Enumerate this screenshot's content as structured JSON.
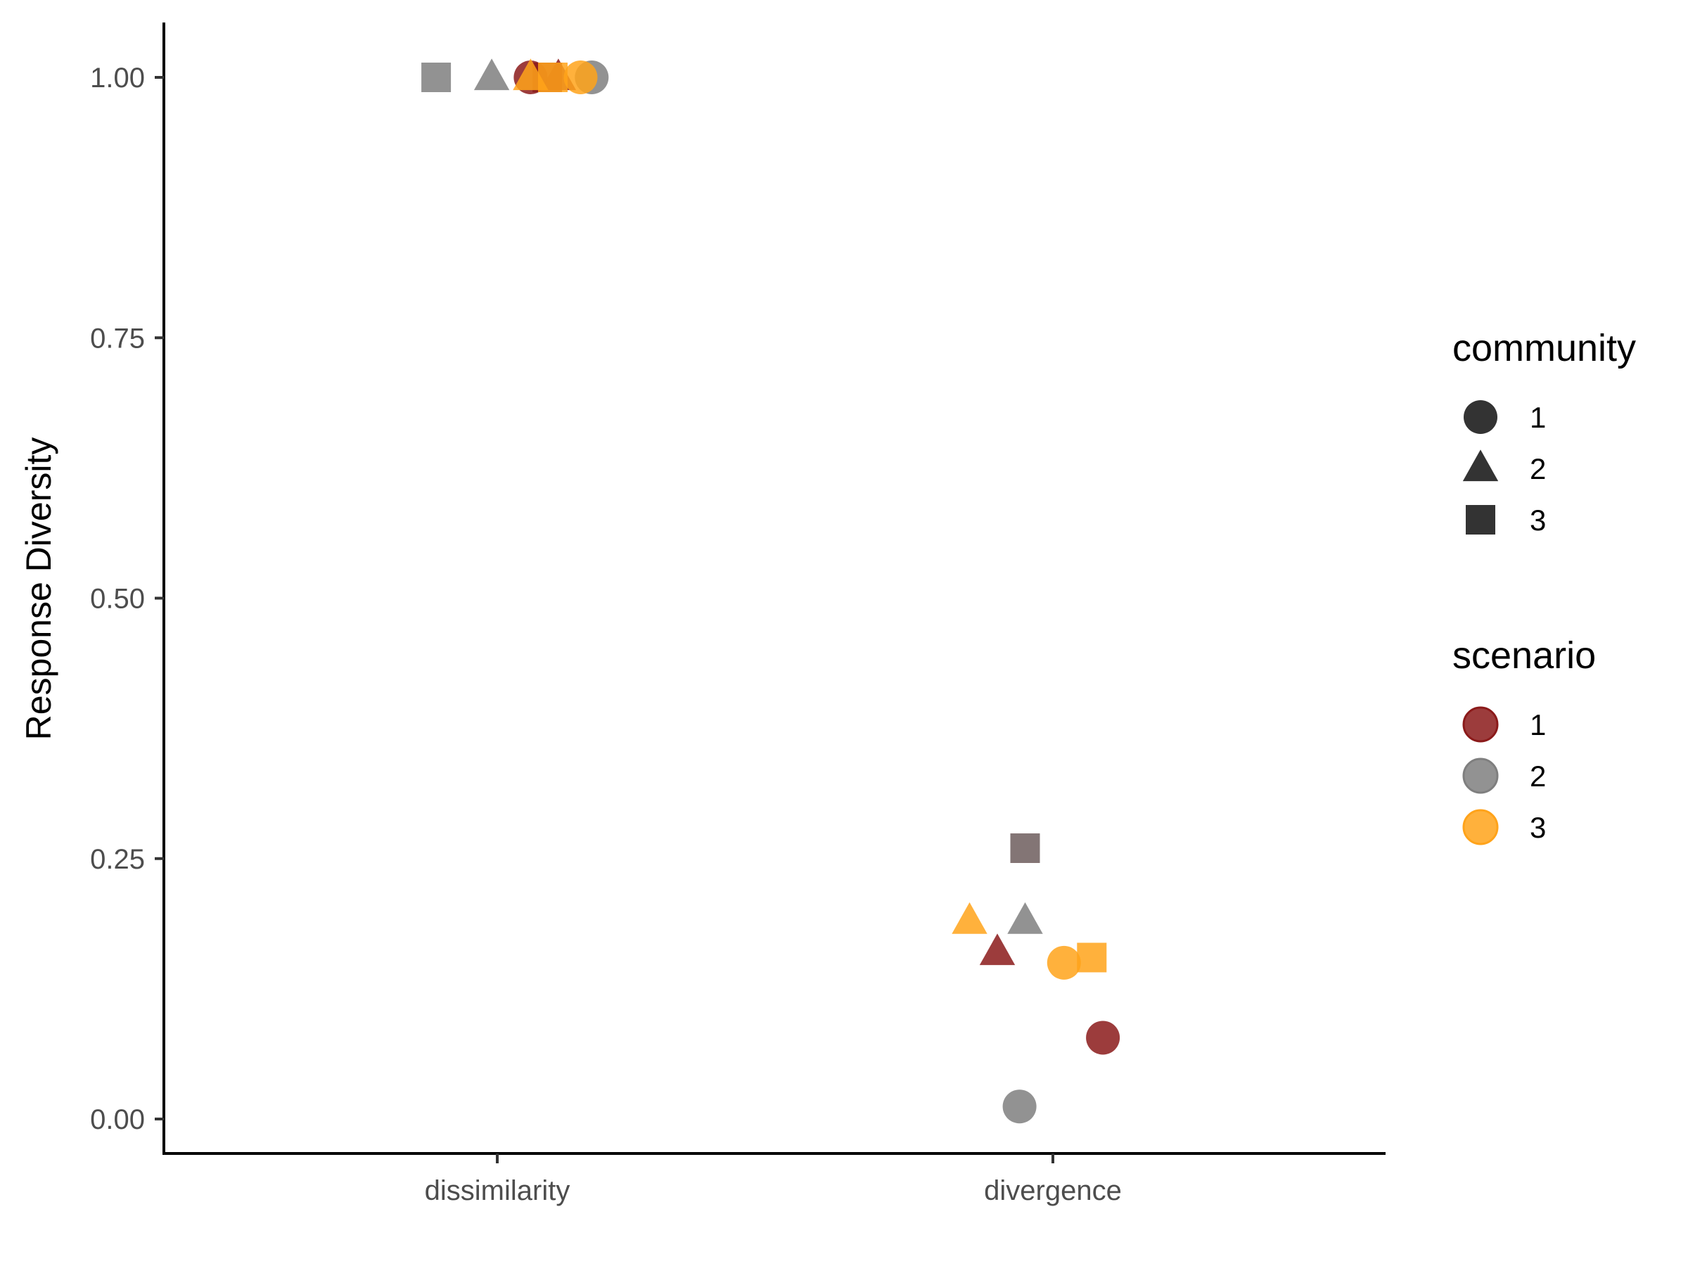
{
  "chart_data": {
    "type": "scatter",
    "title": "",
    "xlabel": "",
    "ylabel": "Response Diversity",
    "categories": [
      "dissimilarity",
      "divergence"
    ],
    "yticks": [
      "0.00",
      "0.25",
      "0.50",
      "0.75",
      "1.00"
    ],
    "ylim": [
      -0.035,
      1.05
    ],
    "grid": false,
    "legend_position": "right",
    "legends": {
      "shape": {
        "title": "community",
        "entries": [
          {
            "label": "1",
            "shape": "circle"
          },
          {
            "label": "2",
            "shape": "triangle"
          },
          {
            "label": "3",
            "shape": "square"
          }
        ]
      },
      "color": {
        "title": "scenario",
        "entries": [
          {
            "label": "1",
            "color": "#8b1a1a"
          },
          {
            "label": "2",
            "color": "#7f7f7f"
          },
          {
            "label": "3",
            "color": "#ffa31a"
          }
        ]
      }
    },
    "points": [
      {
        "category": "dissimilarity",
        "jitter": -0.11,
        "y": 1.0,
        "community": "3",
        "scenario": "2"
      },
      {
        "category": "dissimilarity",
        "jitter": -0.01,
        "y": 1.0,
        "community": "2",
        "scenario": "2"
      },
      {
        "category": "dissimilarity",
        "jitter": 0.06,
        "y": 1.0,
        "community": "1",
        "scenario": "1"
      },
      {
        "category": "dissimilarity",
        "jitter": 0.11,
        "y": 1.0,
        "community": "2",
        "scenario": "1"
      },
      {
        "category": "dissimilarity",
        "jitter": 0.17,
        "y": 1.0,
        "community": "1",
        "scenario": "2"
      },
      {
        "category": "dissimilarity",
        "jitter": 0.09,
        "y": 1.0,
        "community": "3",
        "scenario": "1"
      },
      {
        "category": "dissimilarity",
        "jitter": 0.1,
        "y": 1.0,
        "community": "3",
        "scenario": "3"
      },
      {
        "category": "dissimilarity",
        "jitter": 0.06,
        "y": 1.0,
        "community": "2",
        "scenario": "3"
      },
      {
        "category": "dissimilarity",
        "jitter": 0.15,
        "y": 1.0,
        "community": "1",
        "scenario": "3"
      },
      {
        "category": "divergence",
        "jitter": -0.1,
        "y": 0.16,
        "community": "2",
        "scenario": "1"
      },
      {
        "category": "divergence",
        "jitter": -0.15,
        "y": 0.19,
        "community": "2",
        "scenario": "3"
      },
      {
        "category": "divergence",
        "jitter": -0.05,
        "y": 0.26,
        "community": "3",
        "scenario": "1"
      },
      {
        "category": "divergence",
        "jitter": -0.05,
        "y": 0.19,
        "community": "2",
        "scenario": "2"
      },
      {
        "category": "divergence",
        "jitter": -0.05,
        "y": 0.26,
        "community": "3",
        "scenario": "2"
      },
      {
        "category": "divergence",
        "jitter": 0.02,
        "y": 0.15,
        "community": "1",
        "scenario": "3"
      },
      {
        "category": "divergence",
        "jitter": 0.07,
        "y": 0.155,
        "community": "3",
        "scenario": "3"
      },
      {
        "category": "divergence",
        "jitter": 0.09,
        "y": 0.078,
        "community": "1",
        "scenario": "1"
      },
      {
        "category": "divergence",
        "jitter": -0.06,
        "y": 0.012,
        "community": "1",
        "scenario": "2"
      }
    ]
  }
}
